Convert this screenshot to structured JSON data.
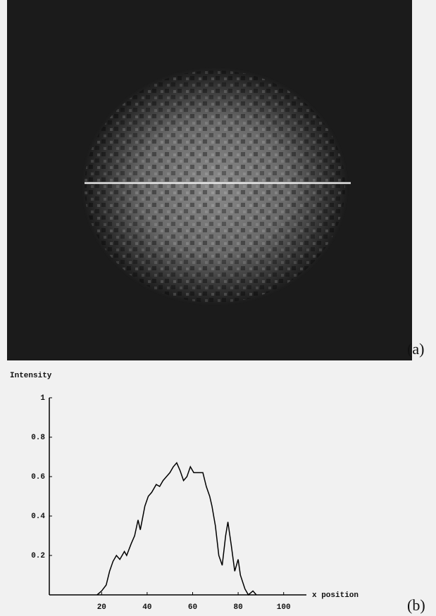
{
  "image_panel": {
    "label": "(a)"
  },
  "chart_data": {
    "type": "line",
    "panel_label": "(b)",
    "y_label": "Intensity",
    "x_label": "x position",
    "x": [
      18,
      20,
      22,
      23.5,
      25,
      26.5,
      28,
      30,
      31,
      33,
      34.5,
      36,
      37,
      37.5,
      39,
      40.5,
      42,
      44,
      45.5,
      47,
      48.5,
      50,
      51.5,
      53,
      54.5,
      56,
      57.5,
      59,
      60.5,
      62,
      64.5,
      66,
      67.5,
      68.5,
      70,
      71.5,
      73,
      74.5,
      75.5,
      77,
      78.5,
      80,
      81,
      83,
      84.5,
      86.5,
      88
    ],
    "series": [
      {
        "color": "#000000",
        "values": [
          0,
          0.02,
          0.05,
          0.12,
          0.17,
          0.2,
          0.18,
          0.22,
          0.2,
          0.26,
          0.3,
          0.38,
          0.33,
          0.36,
          0.45,
          0.5,
          0.52,
          0.56,
          0.55,
          0.58,
          0.6,
          0.62,
          0.65,
          0.67,
          0.63,
          0.58,
          0.6,
          0.65,
          0.62,
          0.62,
          0.62,
          0.55,
          0.5,
          0.45,
          0.35,
          0.2,
          0.15,
          0.3,
          0.37,
          0.25,
          0.12,
          0.18,
          0.1,
          0.03,
          0,
          0.02,
          0
        ]
      }
    ],
    "xlim": [
      -3,
      110
    ],
    "ylim": [
      0,
      1
    ],
    "xticks": [
      20,
      40,
      60,
      80,
      100
    ],
    "yticks": [
      0.2,
      0.4,
      0.6,
      0.8,
      1
    ]
  }
}
